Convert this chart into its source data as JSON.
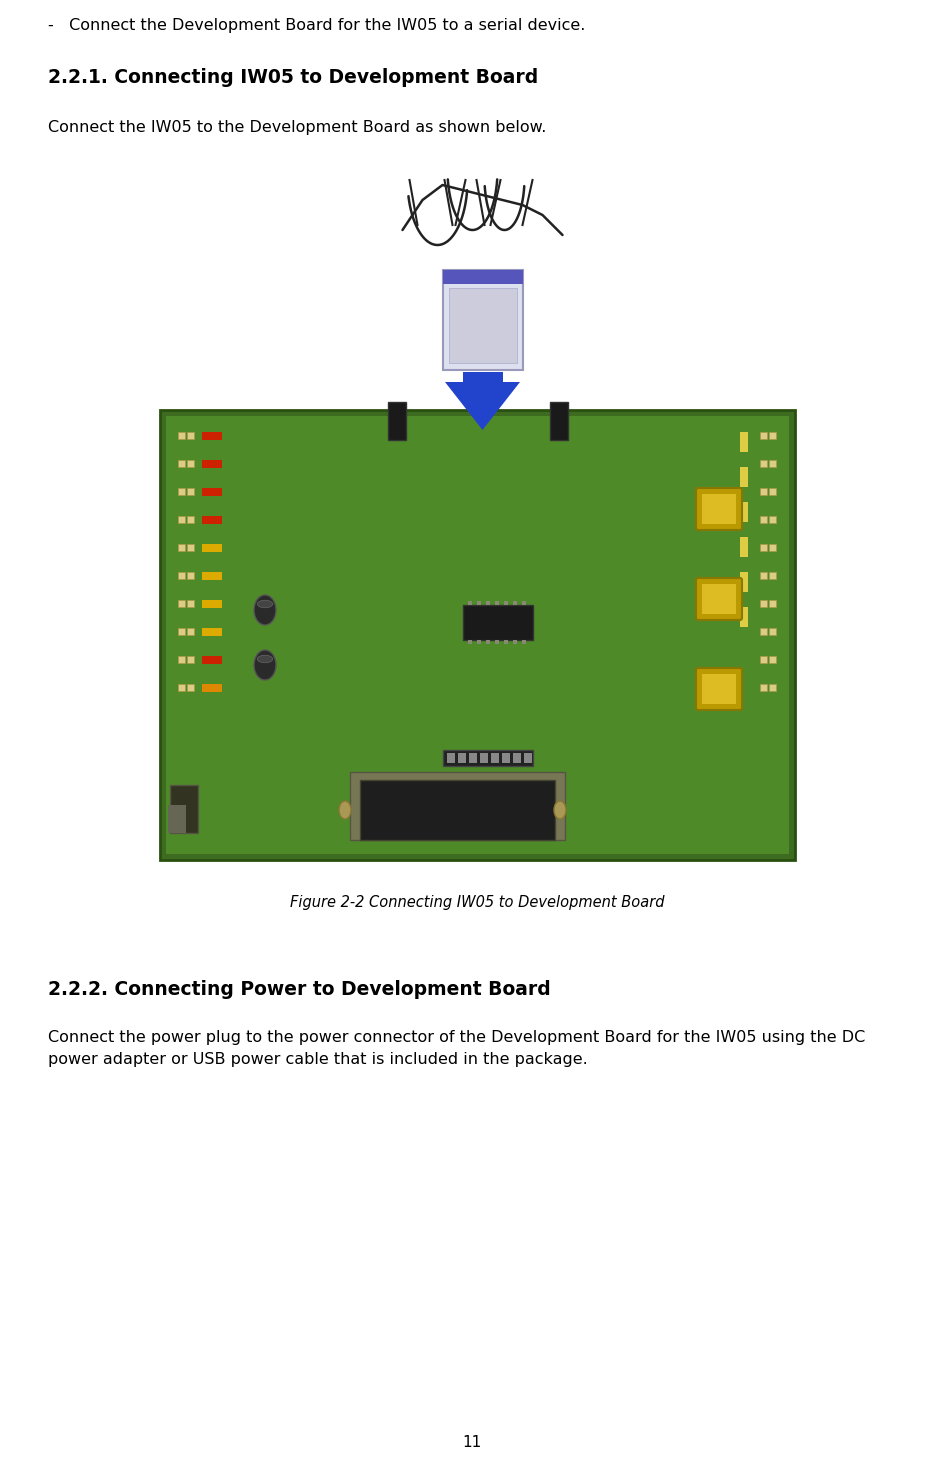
{
  "background_color": "#ffffff",
  "bullet_text": "-   Connect the Development Board for the IW05 to a serial device.",
  "section1_title": "2.2.1. Connecting IW05 to Development Board",
  "section1_body": "Connect the IW05 to the Development Board as shown below.",
  "figure_caption": "Figure 2-2 Connecting IW05 to Development Board",
  "section2_title": "2.2.2. Connecting Power to Development Board",
  "section2_body_line1": "Connect the power plug to the power connector of the Development Board for the IW05 using the DC",
  "section2_body_line2": "power adapter or USB power cable that is included in the package.",
  "page_number": "11",
  "title_fontsize": 13.5,
  "body_fontsize": 11.5,
  "bullet_fontsize": 11.5,
  "caption_fontsize": 10.5,
  "page_num_fontsize": 11,
  "text_color": "#000000",
  "pcb_outer_color": "#3d6b1f",
  "pcb_inner_color": "#4f8a28",
  "module_color": "#dde0ee",
  "module_stripe_color": "#5555bb",
  "arrow_color": "#2244cc",
  "header_color": "#1a1a1a",
  "db9_color": "#1e1e1e",
  "db9_shell_color": "#888866",
  "button_color": "#bb9900",
  "button_border": "#887700",
  "cap_color": "#2a2a2a",
  "ic_color": "#1a1a1a"
}
